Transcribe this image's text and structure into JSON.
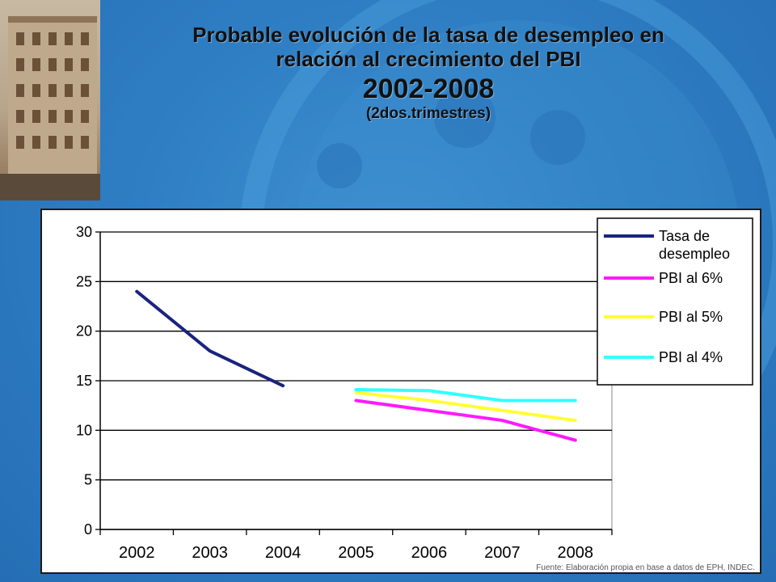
{
  "title": {
    "line1": "Probable evolución de la tasa de desempleo en",
    "line2": "relación al crecimiento del PBI",
    "years": "2002-2008",
    "subtitle": "(2dos.trimestres)"
  },
  "source_note": "Fuente: Elaboración propia en base a datos de EPH, INDEC.",
  "colors": {
    "background": "#2f7ec4",
    "tasa": "#1a237e",
    "pbi6": "#ff1aff",
    "pbi5": "#ffff33",
    "pbi4": "#33ffff"
  },
  "chart_data": {
    "type": "line",
    "title": "",
    "xlabel": "",
    "ylabel": "",
    "categories": [
      "2002",
      "2003",
      "2004",
      "2005",
      "2006",
      "2007",
      "2008"
    ],
    "ylim": [
      0,
      30
    ],
    "yticks": [
      0,
      5,
      10,
      15,
      20,
      25,
      30
    ],
    "grid": true,
    "legend_position": "top-right",
    "series": [
      {
        "name": "Tasa de desempleo",
        "color": "#1a237e",
        "values": [
          24,
          18,
          14.5,
          null,
          null,
          null,
          null
        ]
      },
      {
        "name": "PBI al 6%",
        "color": "#ff1aff",
        "values": [
          null,
          null,
          null,
          13,
          12,
          11,
          9
        ]
      },
      {
        "name": "PBI al 5%",
        "color": "#ffff33",
        "values": [
          null,
          null,
          null,
          13.8,
          13,
          12,
          11
        ]
      },
      {
        "name": "PBI al 4%",
        "color": "#33ffff",
        "values": [
          null,
          null,
          null,
          14.1,
          14,
          13,
          13
        ]
      }
    ]
  }
}
